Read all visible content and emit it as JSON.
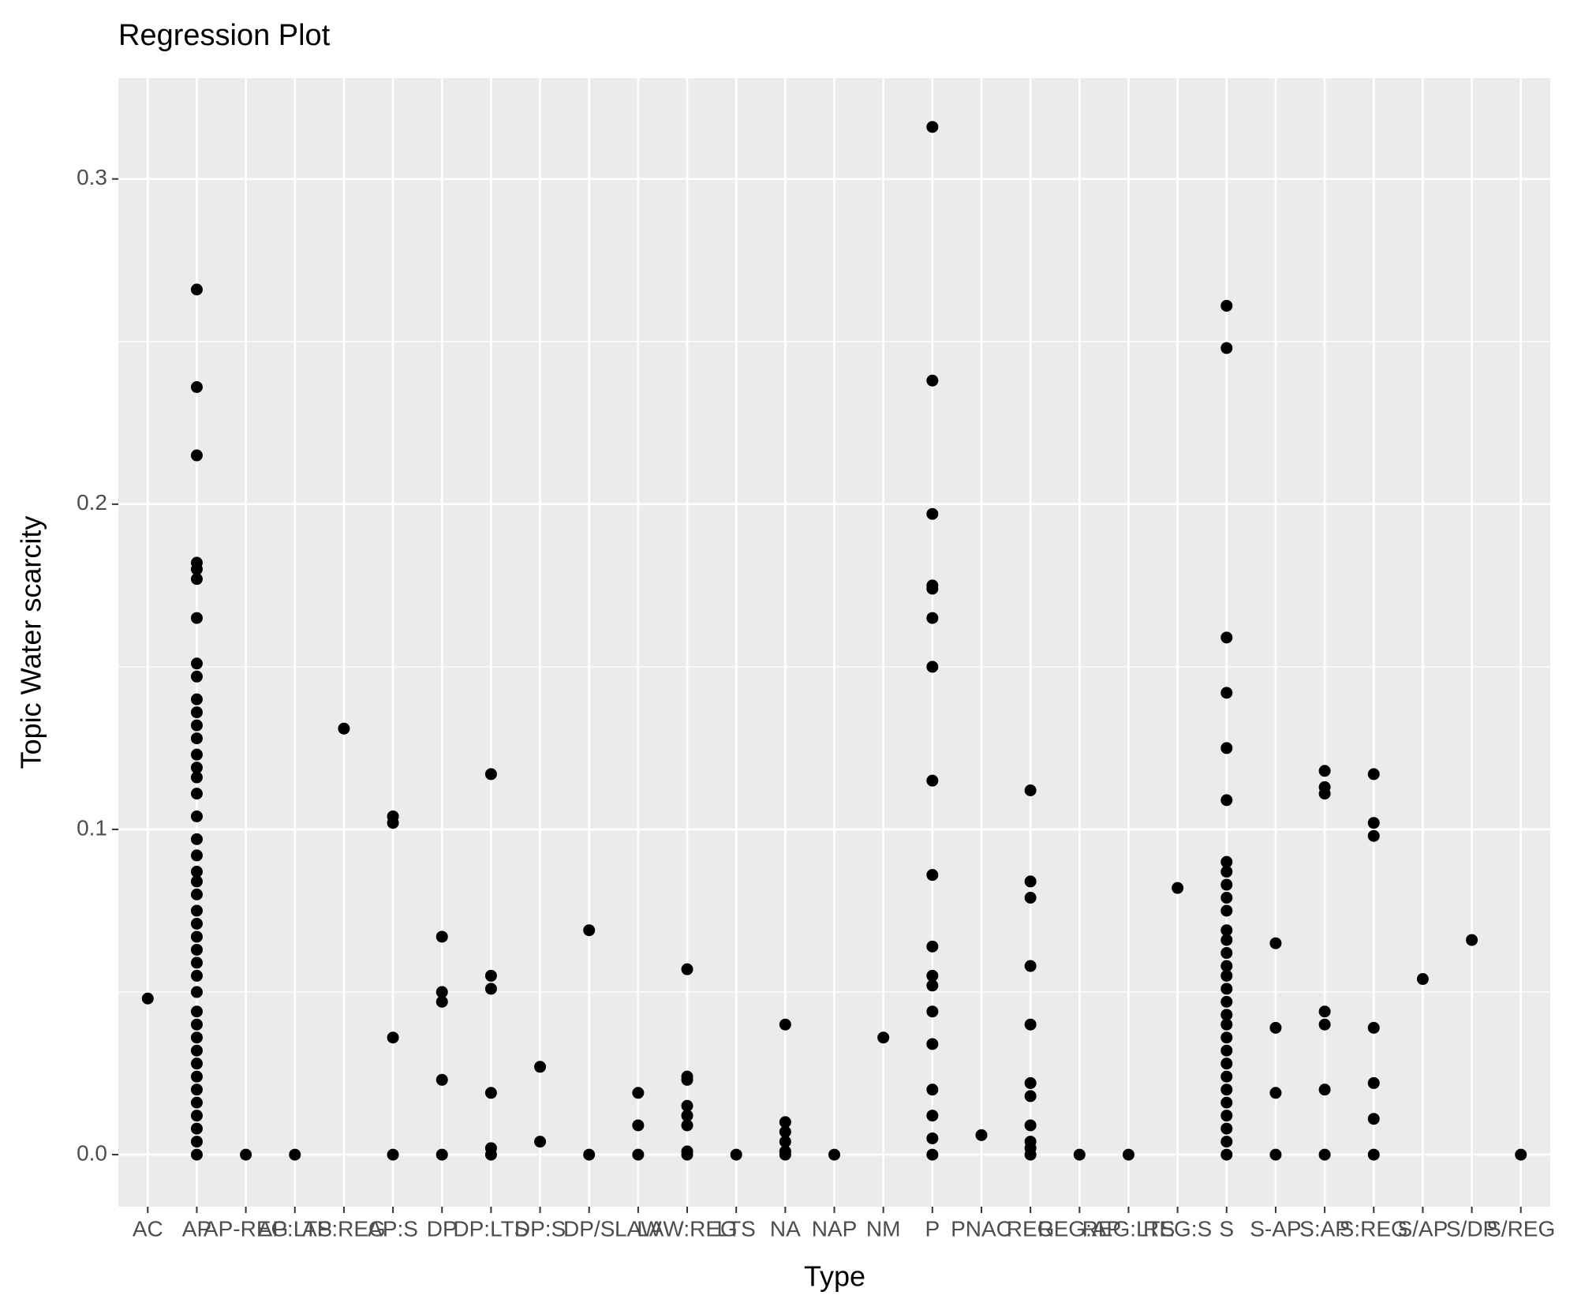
{
  "chart_data": {
    "type": "scatter",
    "title": "Regression Plot",
    "x_label": "Type",
    "y_label": "Topic Water scarcity",
    "categories": [
      "AC",
      "AP",
      "AP-REG",
      "AP:LTS",
      "AP:REG",
      "AP:S",
      "DP",
      "DP:LTS",
      "DP:S",
      "DP/S",
      "LAW",
      "LAW:REG",
      "LTS",
      "NA",
      "NAP",
      "NM",
      "P",
      "PNAC",
      "REG",
      "REG:AP",
      "REG:LTS",
      "REG:S",
      "S",
      "S-AP",
      "S:AP",
      "S:REG",
      "S/AP",
      "S/DP",
      "S/REG"
    ],
    "ylim": [
      -0.016,
      0.331
    ],
    "yticks": [
      {
        "value": 0,
        "label": "0.0"
      },
      0.1,
      0.2,
      0.3
    ],
    "grid": true,
    "series": [
      {
        "color": "#000000",
        "x": [
          "AC",
          "AP",
          "AP",
          "AP",
          "AP",
          "AP",
          "AP",
          "AP",
          "AP",
          "AP",
          "AP",
          "AP",
          "AP",
          "AP",
          "AP",
          "AP",
          "AP",
          "AP",
          "AP",
          "AP",
          "AP",
          "AP",
          "AP",
          "AP",
          "AP",
          "AP",
          "AP",
          "AP",
          "AP",
          "AP",
          "AP",
          "AP",
          "AP",
          "AP",
          "AP",
          "AP",
          "AP",
          "AP",
          "AP",
          "AP",
          "AP",
          "AP",
          "AP",
          "AP-REG",
          "AP:LTS",
          "AP:REG",
          "AP:S",
          "AP:S",
          "AP:S",
          "AP:S",
          "DP",
          "DP",
          "DP",
          "DP",
          "DP",
          "DP:LTS",
          "DP:LTS",
          "DP:LTS",
          "DP:LTS",
          "DP:LTS",
          "DP:LTS",
          "DP:S",
          "DP:S",
          "DP/S",
          "DP/S",
          "LAW",
          "LAW",
          "LAW",
          "LAW:REG",
          "LAW:REG",
          "LAW:REG",
          "LAW:REG",
          "LAW:REG",
          "LAW:REG",
          "LAW:REG",
          "LAW:REG",
          "LTS",
          "NA",
          "NA",
          "NA",
          "NA",
          "NA",
          "NA",
          "NAP",
          "NM",
          "P",
          "P",
          "P",
          "P",
          "P",
          "P",
          "P",
          "P",
          "P",
          "P",
          "P",
          "P",
          "P",
          "P",
          "P",
          "P",
          "P",
          "P",
          "PNAC",
          "REG",
          "REG",
          "REG",
          "REG",
          "REG",
          "REG",
          "REG",
          "REG",
          "REG",
          "REG",
          "REG",
          "REG:AP",
          "REG:LTS",
          "REG:S",
          "S",
          "S",
          "S",
          "S",
          "S",
          "S",
          "S",
          "S",
          "S",
          "S",
          "S",
          "S",
          "S",
          "S",
          "S",
          "S",
          "S",
          "S",
          "S",
          "S",
          "S",
          "S",
          "S",
          "S",
          "S",
          "S",
          "S",
          "S",
          "S",
          "S",
          "S-AP",
          "S-AP",
          "S-AP",
          "S-AP",
          "S:AP",
          "S:AP",
          "S:AP",
          "S:AP",
          "S:AP",
          "S:AP",
          "S:AP",
          "S:REG",
          "S:REG",
          "S:REG",
          "S:REG",
          "S:REG",
          "S:REG",
          "S:REG",
          "S/AP",
          "S/DP",
          "S/REG"
        ],
        "values": [
          0.048,
          0.266,
          0.236,
          0.215,
          0.182,
          0.18,
          0.177,
          0.165,
          0.151,
          0.147,
          0.14,
          0.136,
          0.132,
          0.128,
          0.123,
          0.119,
          0.116,
          0.111,
          0.104,
          0.097,
          0.092,
          0.087,
          0.084,
          0.08,
          0.075,
          0.071,
          0.067,
          0.063,
          0.059,
          0.055,
          0.05,
          0.044,
          0.04,
          0.036,
          0.032,
          0.028,
          0.024,
          0.02,
          0.016,
          0.012,
          0.008,
          0.004,
          0,
          0,
          0,
          0.131,
          0.104,
          0.102,
          0.036,
          0,
          0.067,
          0.05,
          0.047,
          0.023,
          0,
          0.117,
          0.055,
          0.051,
          0.019,
          0.002,
          0,
          0.027,
          0.004,
          0.069,
          0,
          0.019,
          0.009,
          0,
          0.057,
          0.024,
          0.023,
          0.015,
          0.012,
          0.009,
          0.001,
          0,
          0,
          0.04,
          0.01,
          0.007,
          0.004,
          0.001,
          0,
          0,
          0.036,
          0.316,
          0.238,
          0.197,
          0.175,
          0.174,
          0.165,
          0.15,
          0.115,
          0.086,
          0.064,
          0.055,
          0.052,
          0.044,
          0.034,
          0.02,
          0.012,
          0.005,
          0,
          0.006,
          0.112,
          0.084,
          0.079,
          0.058,
          0.04,
          0.022,
          0.018,
          0.009,
          0.004,
          0.002,
          0,
          0,
          0,
          0.082,
          0.261,
          0.248,
          0.159,
          0.142,
          0.125,
          0.109,
          0.09,
          0.087,
          0.083,
          0.079,
          0.075,
          0.069,
          0.066,
          0.062,
          0.058,
          0.055,
          0.051,
          0.047,
          0.043,
          0.04,
          0.036,
          0.032,
          0.028,
          0.024,
          0.02,
          0.016,
          0.012,
          0.008,
          0.004,
          0,
          0.065,
          0.039,
          0.019,
          0,
          0.118,
          0.113,
          0.111,
          0.044,
          0.04,
          0.02,
          0,
          0.117,
          0.102,
          0.098,
          0.039,
          0.022,
          0.011,
          0,
          0.054,
          0.066,
          0
        ]
      }
    ]
  }
}
